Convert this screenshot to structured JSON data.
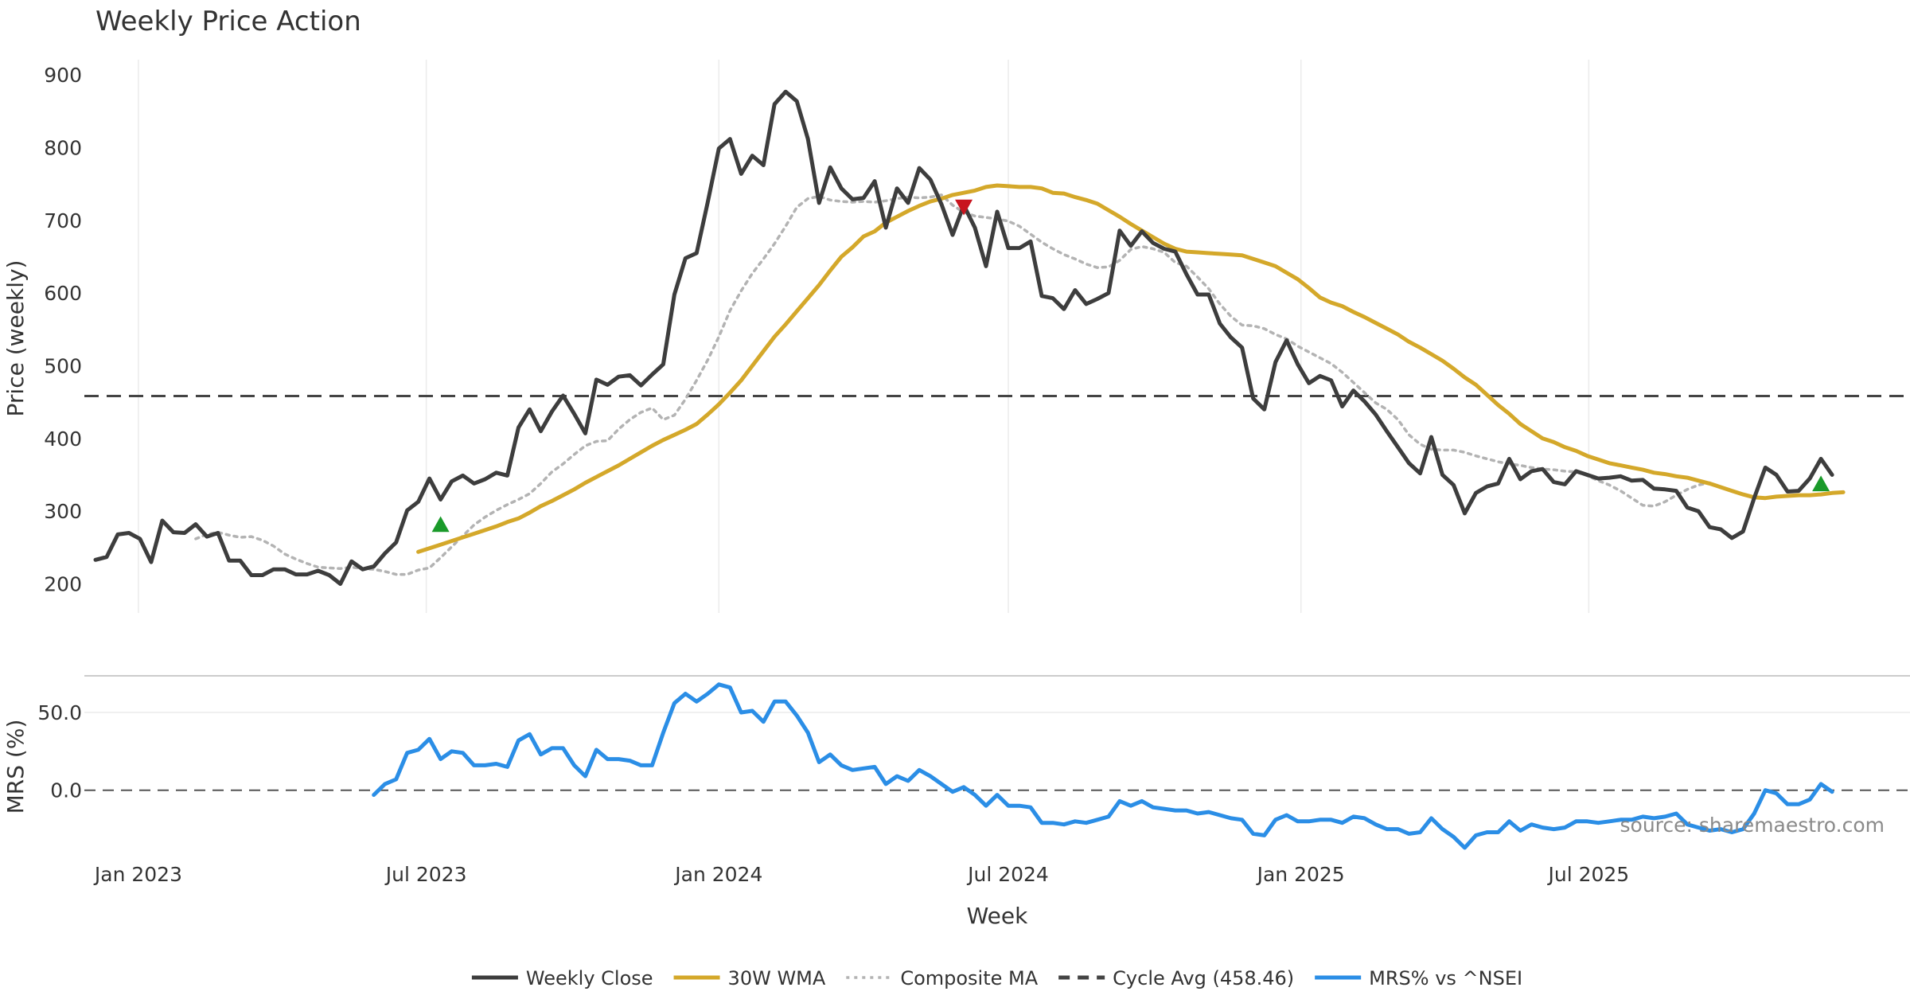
{
  "chart_data": {
    "type": "line",
    "title": "Weekly Price Action",
    "xlabel": "Week",
    "x_range": [
      "2022-11-28",
      "2026-01-19"
    ],
    "x_ticks": [
      {
        "date": "2023-01-01",
        "label": "Jan 2023"
      },
      {
        "date": "2023-07-01",
        "label": "Jul 2023"
      },
      {
        "date": "2024-01-01",
        "label": "Jan 2024"
      },
      {
        "date": "2024-07-01",
        "label": "Jul 2024"
      },
      {
        "date": "2025-01-01",
        "label": "Jan 2025"
      },
      {
        "date": "2025-07-01",
        "label": "Jul 2025"
      }
    ],
    "series_start": "2022-12-05",
    "price_panel": {
      "ylabel": "Price (weekly)",
      "ylim": [
        160,
        932
      ],
      "yticks": [
        200,
        300,
        400,
        500,
        600,
        700,
        800,
        900
      ],
      "cycle_avg": 458.46,
      "series": [
        {
          "name": "Weekly Close",
          "color": "#3d3d3d",
          "style": "solid",
          "offset": 0,
          "values": [
            233,
            237,
            268,
            270,
            262,
            230,
            287,
            271,
            270,
            282,
            265,
            270,
            232,
            232,
            212,
            212,
            220,
            220,
            213,
            213,
            218,
            212,
            200,
            231,
            220,
            224,
            242,
            257,
            301,
            313,
            345,
            316,
            341,
            349,
            338,
            344,
            353,
            349,
            415,
            440,
            410,
            437,
            459,
            434,
            407,
            481,
            474,
            485,
            487,
            473,
            488,
            502,
            598,
            648,
            655,
            725,
            799,
            812,
            764,
            789,
            776,
            860,
            877,
            864,
            812,
            724,
            773,
            744,
            729,
            731,
            754,
            690,
            744,
            724,
            772,
            756,
            722,
            680,
            721,
            690,
            637,
            712,
            662,
            662,
            671,
            596,
            593,
            578,
            604,
            585,
            592,
            600,
            686,
            665,
            685,
            669,
            661,
            657,
            626,
            598,
            598,
            558,
            539,
            525,
            455,
            440,
            505,
            535,
            502,
            476,
            486,
            480,
            444,
            466,
            451,
            433,
            410,
            388,
            366,
            352,
            402,
            350,
            336,
            297,
            325,
            334,
            338,
            372,
            344,
            355,
            358,
            340,
            337,
            355,
            350,
            345,
            346,
            348,
            342,
            343,
            331,
            330,
            328,
            305,
            300,
            278,
            275,
            263,
            272,
            318,
            360,
            350,
            327,
            328,
            345,
            372,
            350
          ]
        },
        {
          "name": "30W WMA",
          "color": "#d4a82a",
          "style": "solid",
          "offset": 29,
          "values": [
            244,
            249,
            254,
            259,
            264,
            269,
            274,
            279,
            285,
            290,
            298,
            307,
            314,
            322,
            330,
            339,
            347,
            355,
            363,
            372,
            381,
            390,
            398,
            405,
            412,
            420,
            433,
            447,
            463,
            480,
            500,
            520,
            540,
            557,
            575,
            593,
            611,
            631,
            650,
            663,
            678,
            685,
            697,
            705,
            713,
            720,
            726,
            730,
            735,
            738,
            741,
            746,
            748,
            747,
            746,
            746,
            744,
            738,
            737,
            732,
            728,
            723,
            714,
            705,
            695,
            686,
            677,
            668,
            661,
            657,
            656,
            655,
            654,
            653,
            652,
            647,
            642,
            637,
            628,
            619,
            607,
            594,
            587,
            582,
            574,
            567,
            559,
            551,
            543,
            533,
            525,
            516,
            507,
            496,
            484,
            474,
            460,
            446,
            434,
            420,
            410,
            400,
            395,
            388,
            383,
            376,
            371,
            366,
            363,
            360,
            357,
            353,
            351,
            348,
            346,
            342,
            338,
            333,
            328,
            323,
            319,
            318,
            320,
            321,
            322,
            322,
            323,
            325,
            326
          ]
        },
        {
          "name": "Composite MA",
          "color": "#b3b3b3",
          "style": "dotted",
          "offset": 9,
          "values": [
            262,
            268,
            271,
            267,
            264,
            265,
            260,
            252,
            241,
            234,
            228,
            223,
            222,
            221,
            223,
            221,
            220,
            217,
            213,
            213,
            219,
            222,
            236,
            251,
            266,
            281,
            292,
            301,
            309,
            316,
            324,
            338,
            354,
            365,
            378,
            390,
            396,
            397,
            413,
            426,
            436,
            442,
            426,
            432,
            454,
            480,
            508,
            540,
            576,
            603,
            627,
            647,
            668,
            692,
            718,
            730,
            733,
            728,
            726,
            725,
            726,
            725,
            727,
            730,
            732,
            731,
            732,
            735,
            721,
            711,
            706,
            704,
            702,
            699,
            692,
            681,
            670,
            661,
            653,
            647,
            640,
            635,
            636,
            645,
            660,
            664,
            661,
            656,
            642,
            637,
            622,
            606,
            585,
            568,
            556,
            555,
            551,
            543,
            537,
            527,
            519,
            511,
            503,
            491,
            477,
            463,
            449,
            440,
            426,
            405,
            392,
            385,
            384,
            384,
            381,
            376,
            372,
            368,
            365,
            363,
            360,
            358,
            357,
            355,
            354,
            349,
            342,
            336,
            328,
            318,
            308,
            307,
            313,
            322,
            330,
            336,
            339
          ]
        },
        {
          "name": "Cycle Avg (458.46)",
          "color": "#444444",
          "style": "dashed"
        }
      ],
      "markers": [
        {
          "type": "buy",
          "week": 31,
          "value": 281,
          "color": "#1a9a2a"
        },
        {
          "type": "sell",
          "week": 78,
          "value": 719,
          "color": "#c8141e"
        },
        {
          "type": "buy",
          "week": 155,
          "value": 337,
          "color": "#1a9a2a"
        }
      ]
    },
    "mrs_panel": {
      "ylabel": "MRS (%)",
      "ylim": [
        -37,
        72
      ],
      "yticks": [
        {
          "value": 50,
          "label": "50.0"
        },
        {
          "value": 0,
          "label": "0.0"
        }
      ],
      "series": [
        {
          "name": "MRS% vs ^NSEI",
          "color": "#2b8ee6",
          "style": "solid",
          "offset": 25,
          "values": [
            -3,
            4,
            7,
            24,
            26,
            33,
            20,
            25,
            24,
            16,
            16,
            17,
            15,
            32,
            36,
            23,
            27,
            27,
            16,
            9,
            26,
            20,
            20,
            19,
            16,
            16,
            37,
            56,
            62,
            57,
            62,
            68,
            66,
            50,
            51,
            44,
            57,
            57,
            48,
            37,
            18,
            23,
            16,
            13,
            14,
            15,
            4,
            9,
            6,
            13,
            9,
            4,
            -1,
            2,
            -3,
            -10,
            -3,
            -10,
            -10,
            -11,
            -21,
            -21,
            -22,
            -20,
            -21,
            -19,
            -17,
            -7,
            -10,
            -7,
            -11,
            -12,
            -13,
            -13,
            -15,
            -14,
            -16,
            -18,
            -19,
            -28,
            -29,
            -19,
            -16,
            -20,
            -20,
            -19,
            -19,
            -21,
            -17,
            -18,
            -22,
            -25,
            -25,
            -28,
            -27,
            -18,
            -25,
            -30,
            -37,
            -29,
            -27,
            -27,
            -20,
            -26,
            -22,
            -24,
            -25,
            -24,
            -20,
            -20,
            -21,
            -20,
            -19,
            -19,
            -17,
            -18,
            -17,
            -15,
            -22,
            -24,
            -26,
            -25,
            -27,
            -25,
            -15,
            0,
            -2,
            -9,
            -9,
            -6,
            4,
            -1
          ]
        }
      ]
    },
    "legend": {
      "placement": "bottom-center",
      "items": [
        "Weekly Close",
        "30W WMA",
        "Composite MA",
        "Cycle Avg (458.46)",
        "MRS% vs ^NSEI"
      ]
    },
    "annotation": "source: sharemaestro.com",
    "grid": true
  }
}
